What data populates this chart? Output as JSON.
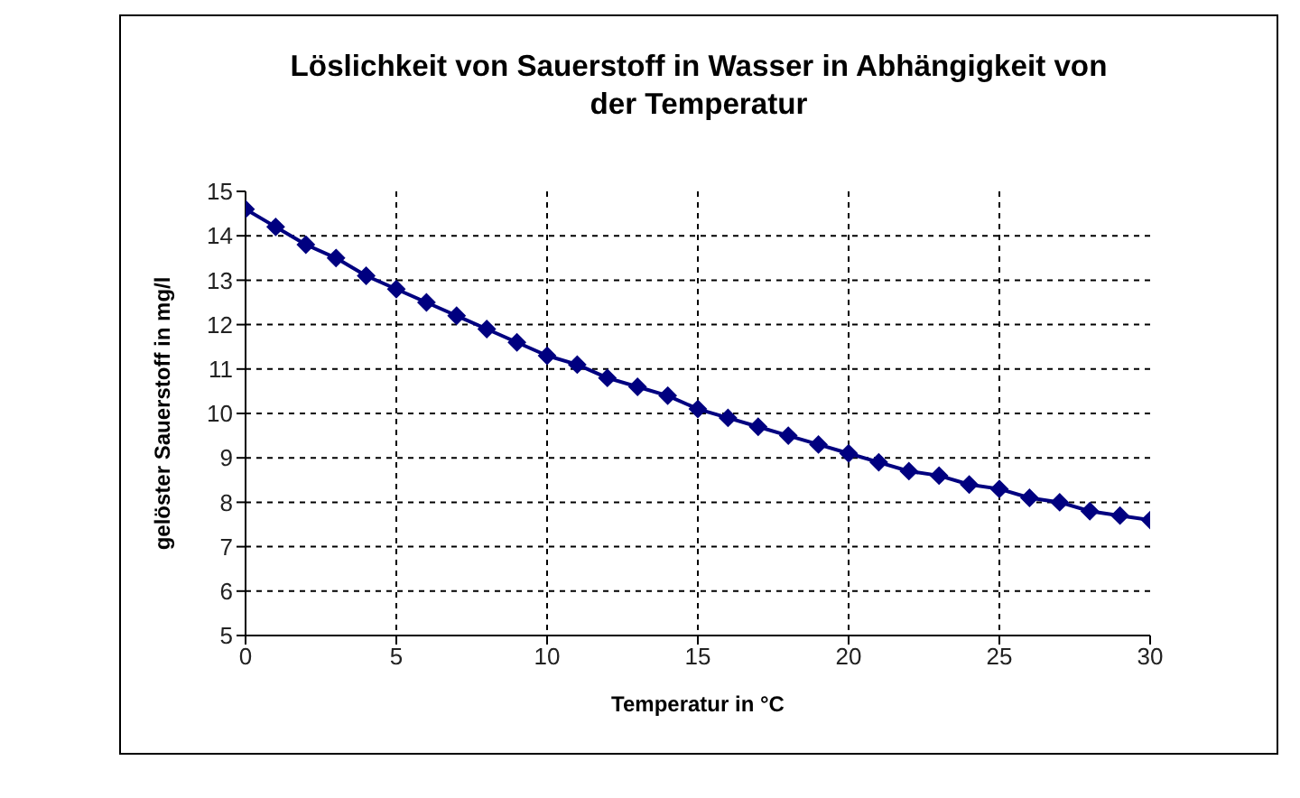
{
  "chart_data": {
    "type": "line",
    "title": "Löslichkeit von Sauerstoff in Wasser in Abhängigkeit von der Temperatur",
    "xlabel": "Temperatur in °C",
    "ylabel": "gelöster Sauerstoff in mg/l",
    "x": [
      0,
      1,
      2,
      3,
      4,
      5,
      6,
      7,
      8,
      9,
      10,
      11,
      12,
      13,
      14,
      15,
      16,
      17,
      18,
      19,
      20,
      21,
      22,
      23,
      24,
      25,
      26,
      27,
      28,
      29,
      30
    ],
    "series": [
      {
        "color": "#000080",
        "values": [
          14.6,
          14.2,
          13.8,
          13.5,
          13.1,
          12.8,
          12.5,
          12.2,
          11.9,
          11.6,
          11.3,
          11.1,
          10.8,
          10.6,
          10.4,
          10.1,
          9.9,
          9.7,
          9.5,
          9.3,
          9.1,
          8.9,
          8.7,
          8.6,
          8.4,
          8.3,
          8.1,
          8.0,
          7.8,
          7.7,
          7.6
        ]
      }
    ],
    "xlim": [
      0,
      30
    ],
    "xticks": [
      0,
      5,
      10,
      15,
      20,
      25,
      30
    ],
    "ylim": [
      5,
      15
    ],
    "yticks": [
      5,
      6,
      7,
      8,
      9,
      10,
      11,
      12,
      13,
      14,
      15
    ],
    "grid": true,
    "marker": "diamond",
    "line_style": "solid"
  }
}
